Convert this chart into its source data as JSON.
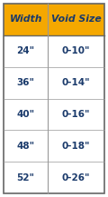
{
  "header": [
    "Width",
    "Void Size"
  ],
  "rows": [
    [
      "24\"",
      "0-10\""
    ],
    [
      "36\"",
      "0-14\""
    ],
    [
      "40\"",
      "0-16\""
    ],
    [
      "48\"",
      "0-18\""
    ],
    [
      "52\"",
      "0-26\""
    ]
  ],
  "header_bg": "#F5A800",
  "header_text_color": "#1a3a6b",
  "row_bg": "#ffffff",
  "row_text_color": "#1a3a6b",
  "border_color": "#999999",
  "outer_border_color": "#666666",
  "font_size": 7.5,
  "header_font_size": 7.8,
  "col_split": 0.44
}
